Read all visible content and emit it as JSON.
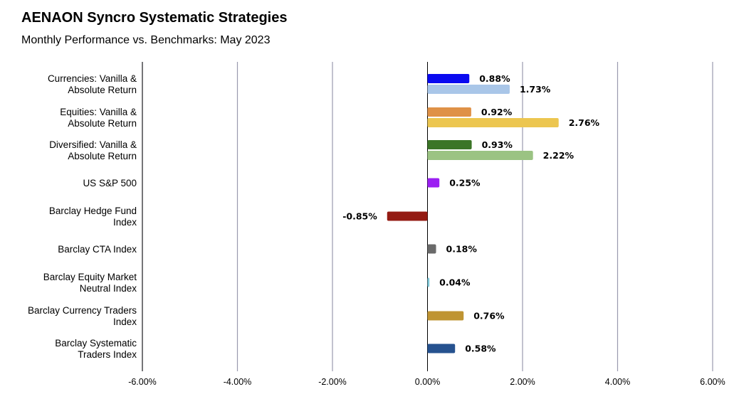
{
  "title": "AENAON Syncro Systematic Strategies",
  "subtitle": "Monthly Performance vs. Benchmarks: May 2023",
  "chart_data": {
    "type": "bar",
    "orientation": "horizontal",
    "xlim": [
      -6,
      6
    ],
    "xticks": [
      "-6.00%",
      "-4.00%",
      "-2.00%",
      "0.00%",
      "2.00%",
      "4.00%",
      "6.00%"
    ],
    "xtick_values": [
      -6,
      -4,
      -2,
      0,
      2,
      4,
      6
    ],
    "grid": "vertical",
    "legend": "none",
    "categories": [
      {
        "label": [
          "Currencies: Vanilla &",
          "Absolute Return"
        ],
        "bars": [
          {
            "value": 0.88,
            "label": "0.88%",
            "color": "#0a0af0"
          },
          {
            "value": 1.73,
            "label": "1.73%",
            "color": "#a9c6e8"
          }
        ]
      },
      {
        "label": [
          "Equities: Vanilla &",
          "Absolute Return"
        ],
        "bars": [
          {
            "value": 0.92,
            "label": "0.92%",
            "color": "#df9147"
          },
          {
            "value": 2.76,
            "label": "2.76%",
            "color": "#ecc650"
          }
        ]
      },
      {
        "label": [
          "Diversified: Vanilla &",
          "Absolute Return"
        ],
        "bars": [
          {
            "value": 0.93,
            "label": "0.93%",
            "color": "#3b7527"
          },
          {
            "value": 2.22,
            "label": "2.22%",
            "color": "#9bc383"
          }
        ]
      },
      {
        "label": [
          "US S&P 500"
        ],
        "bars": [
          {
            "value": 0.25,
            "label": "0.25%",
            "color": "#9b1ff2"
          }
        ]
      },
      {
        "label": [
          "Barclay Hedge Fund",
          "Index"
        ],
        "bars": [
          {
            "value": -0.85,
            "label": "-0.85%",
            "color": "#941b13"
          }
        ]
      },
      {
        "label": [
          "Barclay CTA Index"
        ],
        "bars": [
          {
            "value": 0.18,
            "label": "0.18%",
            "color": "#6a6a6a"
          }
        ]
      },
      {
        "label": [
          "Barclay Equity Market",
          "Neutral Index"
        ],
        "bars": [
          {
            "value": 0.04,
            "label": "0.04%",
            "color": "#7fc8d8"
          }
        ]
      },
      {
        "label": [
          "Barclay Currency Traders",
          "Index"
        ],
        "bars": [
          {
            "value": 0.76,
            "label": "0.76%",
            "color": "#bf9432"
          }
        ]
      },
      {
        "label": [
          "Barclay Systematic",
          "Traders Index"
        ],
        "bars": [
          {
            "value": 0.58,
            "label": "0.58%",
            "color": "#26528f"
          }
        ]
      }
    ]
  }
}
